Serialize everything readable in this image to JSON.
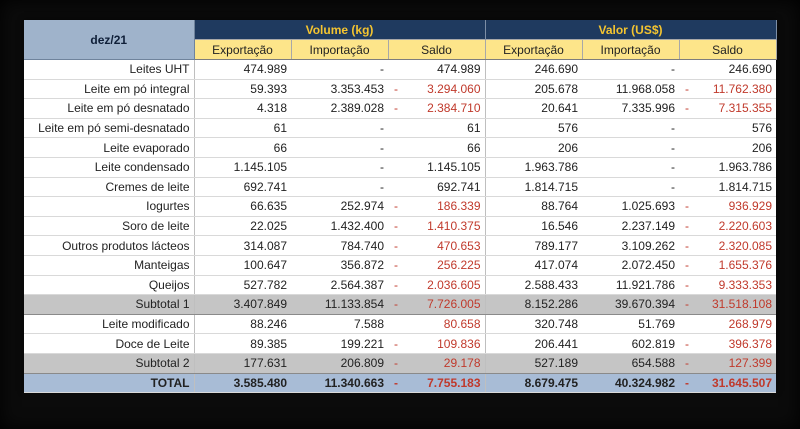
{
  "header": {
    "period": "dez/21",
    "group_volume": "Volume (kg)",
    "group_valor": "Valor (US$)",
    "sub": [
      "Exportação",
      "Importação",
      "Saldo",
      "Exportação",
      "Importação",
      "Saldo"
    ]
  },
  "rows": [
    {
      "name": "Leites UHT",
      "v_exp": "474.989",
      "v_imp": "-",
      "v_saldo": "474.989",
      "v_neg": false,
      "u_exp": "246.690",
      "u_imp": "-",
      "u_saldo": "246.690",
      "u_neg": false,
      "kind": "row"
    },
    {
      "name": "Leite em pó integral",
      "v_exp": "59.393",
      "v_imp": "3.353.453",
      "v_saldo": "3.294.060",
      "v_neg": true,
      "u_exp": "205.678",
      "u_imp": "11.968.058",
      "u_saldo": "11.762.380",
      "u_neg": true,
      "kind": "row"
    },
    {
      "name": "Leite em pó desnatado",
      "v_exp": "4.318",
      "v_imp": "2.389.028",
      "v_saldo": "2.384.710",
      "v_neg": true,
      "u_exp": "20.641",
      "u_imp": "7.335.996",
      "u_saldo": "7.315.355",
      "u_neg": true,
      "kind": "row"
    },
    {
      "name": "Leite em pó semi-desnatado",
      "v_exp": "61",
      "v_imp": "-",
      "v_saldo": "61",
      "v_neg": false,
      "u_exp": "576",
      "u_imp": "-",
      "u_saldo": "576",
      "u_neg": false,
      "kind": "row"
    },
    {
      "name": "Leite evaporado",
      "v_exp": "66",
      "v_imp": "-",
      "v_saldo": "66",
      "v_neg": false,
      "u_exp": "206",
      "u_imp": "-",
      "u_saldo": "206",
      "u_neg": false,
      "kind": "row"
    },
    {
      "name": "Leite condensado",
      "v_exp": "1.145.105",
      "v_imp": "-",
      "v_saldo": "1.145.105",
      "v_neg": false,
      "u_exp": "1.963.786",
      "u_imp": "-",
      "u_saldo": "1.963.786",
      "u_neg": false,
      "kind": "row"
    },
    {
      "name": "Cremes de leite",
      "v_exp": "692.741",
      "v_imp": "-",
      "v_saldo": "692.741",
      "v_neg": false,
      "u_exp": "1.814.715",
      "u_imp": "-",
      "u_saldo": "1.814.715",
      "u_neg": false,
      "kind": "row"
    },
    {
      "name": "Iogurtes",
      "v_exp": "66.635",
      "v_imp": "252.974",
      "v_saldo": "186.339",
      "v_neg": true,
      "u_exp": "88.764",
      "u_imp": "1.025.693",
      "u_saldo": "936.929",
      "u_neg": true,
      "kind": "row"
    },
    {
      "name": "Soro de leite",
      "v_exp": "22.025",
      "v_imp": "1.432.400",
      "v_saldo": "1.410.375",
      "v_neg": true,
      "u_exp": "16.546",
      "u_imp": "2.237.149",
      "u_saldo": "2.220.603",
      "u_neg": true,
      "kind": "row"
    },
    {
      "name": "Outros produtos lácteos",
      "v_exp": "314.087",
      "v_imp": "784.740",
      "v_saldo": "470.653",
      "v_neg": true,
      "u_exp": "789.177",
      "u_imp": "3.109.262",
      "u_saldo": "2.320.085",
      "u_neg": true,
      "kind": "row"
    },
    {
      "name": "Manteigas",
      "v_exp": "100.647",
      "v_imp": "356.872",
      "v_saldo": "256.225",
      "v_neg": true,
      "u_exp": "417.074",
      "u_imp": "2.072.450",
      "u_saldo": "1.655.376",
      "u_neg": true,
      "kind": "row"
    },
    {
      "name": "Queijos",
      "v_exp": "527.782",
      "v_imp": "2.564.387",
      "v_saldo": "2.036.605",
      "v_neg": true,
      "u_exp": "2.588.433",
      "u_imp": "11.921.786",
      "u_saldo": "9.333.353",
      "u_neg": true,
      "kind": "row"
    },
    {
      "name": "Subtotal 1",
      "v_exp": "3.407.849",
      "v_imp": "11.133.854",
      "v_saldo": "7.726.005",
      "v_neg": true,
      "u_exp": "8.152.286",
      "u_imp": "39.670.394",
      "u_saldo": "31.518.108",
      "u_neg": true,
      "kind": "subtotal"
    },
    {
      "name": "Leite modificado",
      "v_exp": "88.246",
      "v_imp": "7.588",
      "v_saldo": "80.658",
      "v_neg": false,
      "v_red": true,
      "u_exp": "320.748",
      "u_imp": "51.769",
      "u_saldo": "268.979",
      "u_neg": false,
      "u_red": true,
      "kind": "row"
    },
    {
      "name": "Doce de Leite",
      "v_exp": "89.385",
      "v_imp": "199.221",
      "v_saldo": "109.836",
      "v_neg": true,
      "u_exp": "206.441",
      "u_imp": "602.819",
      "u_saldo": "396.378",
      "u_neg": true,
      "kind": "row"
    },
    {
      "name": "Subtotal 2",
      "v_exp": "177.631",
      "v_imp": "206.809",
      "v_saldo": "29.178",
      "v_neg": true,
      "u_exp": "527.189",
      "u_imp": "654.588",
      "u_saldo": "127.399",
      "u_neg": true,
      "kind": "subtotal"
    },
    {
      "name": "TOTAL",
      "v_exp": "3.585.480",
      "v_imp": "11.340.663",
      "v_saldo": "7.755.183",
      "v_neg": true,
      "u_exp": "8.679.475",
      "u_imp": "40.324.982",
      "u_saldo": "31.645.507",
      "u_neg": true,
      "kind": "total"
    }
  ],
  "minus_sign": "-"
}
